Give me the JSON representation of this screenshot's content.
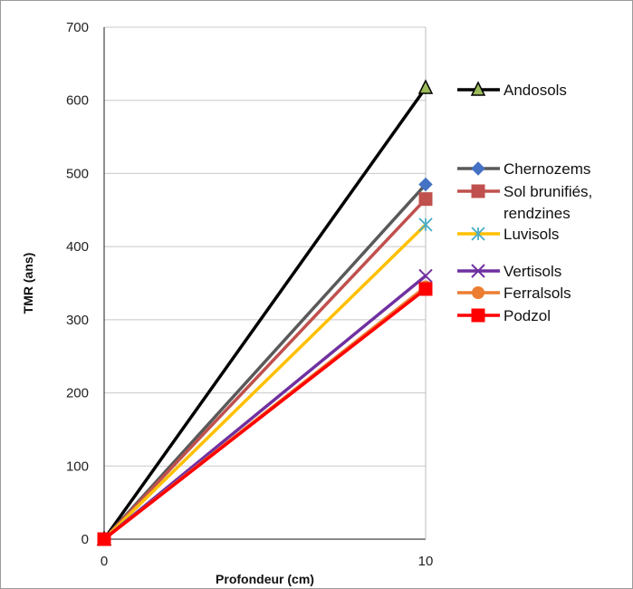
{
  "chart_data": {
    "type": "line",
    "title": "",
    "xlabel": "Profondeur (cm)",
    "ylabel": "TMR (ans)",
    "x": [
      0,
      10
    ],
    "x_ticks": [
      "0",
      "10"
    ],
    "ylim": [
      0,
      700
    ],
    "y_ticks": [
      0,
      100,
      200,
      300,
      400,
      500,
      600,
      700
    ],
    "grid": "horizontal",
    "legend_position": "right",
    "series": [
      {
        "name": "Andosols",
        "color": "#000000",
        "marker": "triangle",
        "values": [
          0,
          617
        ]
      },
      {
        "name": "Chernozems",
        "color": "#595959",
        "marker": "diamond",
        "values": [
          0,
          485
        ]
      },
      {
        "name": "Sol brunifiés, rendzines",
        "color": "#c0504d",
        "marker": "square",
        "values": [
          0,
          465
        ]
      },
      {
        "name": "Luvisols",
        "color": "#ffc000",
        "marker": "star",
        "values": [
          0,
          430
        ]
      },
      {
        "name": "Vertisols",
        "color": "#7030a0",
        "marker": "x",
        "values": [
          0,
          360
        ]
      },
      {
        "name": "Ferralsols",
        "color": "#ed7d31",
        "marker": "circle",
        "values": [
          0,
          345
        ]
      },
      {
        "name": "Podzol",
        "color": "#ff0000",
        "marker": "square",
        "values": [
          0,
          342
        ]
      }
    ],
    "legend": [
      {
        "label": "Andosols"
      },
      {
        "label": "Chernozems"
      },
      {
        "label": "Sol brunifiés,",
        "label2": "rendzines"
      },
      {
        "label": "Luvisols"
      },
      {
        "label": "Vertisols"
      },
      {
        "label": "Ferralsols"
      },
      {
        "label": "Podzol"
      }
    ]
  }
}
